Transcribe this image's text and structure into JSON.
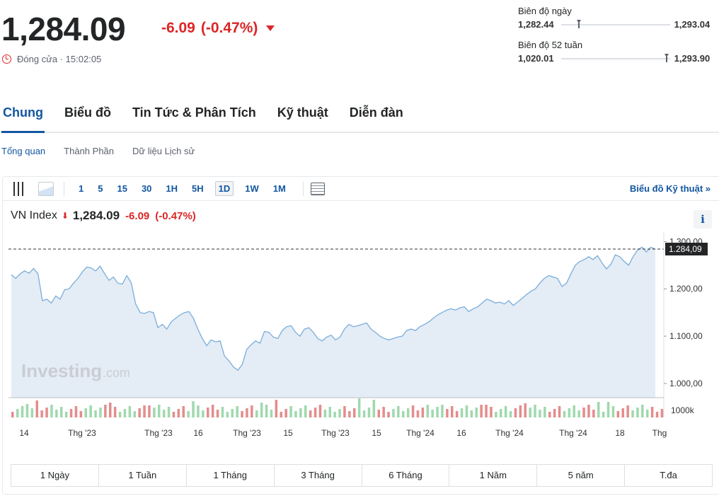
{
  "quote": {
    "price": "1,284.09",
    "change": "-6.09",
    "change_pct": "(-0.47%)",
    "status": "Đóng cửa · 15:02:05"
  },
  "day_range": {
    "label": "Biên độ ngày",
    "low": "1,282.44",
    "high": "1,293.04"
  },
  "week52_range": {
    "label": "Biên độ 52 tuần",
    "low": "1,020.01",
    "high": "1,293.90"
  },
  "tabs": [
    "Chung",
    "Biểu đồ",
    "Tin Tức & Phân Tích",
    "Kỹ thuật",
    "Diễn đàn"
  ],
  "subtabs": [
    "Tổng quan",
    "Thành Phần",
    "Dữ liệu Lịch sử"
  ],
  "toolbar": {
    "periods": [
      "1",
      "5",
      "15",
      "30",
      "1H",
      "5H",
      "1D",
      "1W",
      "1M"
    ],
    "active_period": "1D",
    "tech_link": "Biểu đồ Kỹ thuật »"
  },
  "instrument": {
    "name": "VN Index",
    "value": "1,284.09",
    "change": "-6.09",
    "change_pct": "(-0.47%)",
    "info": "i"
  },
  "colors": {
    "down": "#dc2626",
    "accent": "#1256a0",
    "line": "#7aaedb",
    "area": "#e4ecf5",
    "vol_up": "#9fd9ae",
    "vol_down": "#e58c8c"
  },
  "chart_data": {
    "type": "area",
    "y_ticks": [
      "1.300,00",
      "1.200,00",
      "1.100,00",
      "1.000,00"
    ],
    "ylim": [
      970,
      1320
    ],
    "current_label": "1.284,09",
    "current_value": 1284.09,
    "volume_label": "1000k",
    "x_ticks": [
      "14",
      "Thg '23",
      "Thg '23",
      "16",
      "Thg '23",
      "15",
      "Thg '23",
      "15",
      "Thg '24",
      "16",
      "Thg '24",
      "Thg '24",
      "18",
      "Thg"
    ],
    "watermark_main": "Investing",
    "watermark_suffix": ".com",
    "values": [
      1230,
      1222,
      1232,
      1238,
      1233,
      1243,
      1232,
      1175,
      1178,
      1170,
      1185,
      1178,
      1198,
      1200,
      1212,
      1222,
      1236,
      1246,
      1244,
      1238,
      1248,
      1232,
      1218,
      1225,
      1212,
      1210,
      1228,
      1213,
      1168,
      1150,
      1148,
      1152,
      1150,
      1118,
      1125,
      1115,
      1130,
      1138,
      1145,
      1150,
      1152,
      1138,
      1115,
      1095,
      1080,
      1092,
      1088,
      1090,
      1058,
      1048,
      1035,
      1028,
      1040,
      1072,
      1082,
      1090,
      1085,
      1110,
      1108,
      1098,
      1095,
      1112,
      1120,
      1122,
      1108,
      1100,
      1115,
      1118,
      1108,
      1095,
      1090,
      1098,
      1102,
      1092,
      1098,
      1115,
      1125,
      1120,
      1122,
      1125,
      1128,
      1115,
      1108,
      1100,
      1095,
      1092,
      1095,
      1098,
      1100,
      1112,
      1115,
      1112,
      1120,
      1125,
      1130,
      1138,
      1145,
      1150,
      1155,
      1158,
      1155,
      1160,
      1162,
      1152,
      1158,
      1162,
      1170,
      1178,
      1175,
      1170,
      1172,
      1168,
      1175,
      1165,
      1172,
      1180,
      1188,
      1195,
      1200,
      1212,
      1222,
      1228,
      1225,
      1222,
      1205,
      1212,
      1232,
      1250,
      1258,
      1262,
      1268,
      1262,
      1270,
      1255,
      1242,
      1252,
      1272,
      1268,
      1258,
      1250,
      1268,
      1282,
      1288,
      1278,
      1288,
      1284
    ],
    "volumes_hint": "mixed green/red volume bars"
  },
  "period_buttons": [
    "1 Ngày",
    "1 Tuần",
    "1 Tháng",
    "3 Tháng",
    "6 Tháng",
    "1 Năm",
    "5 năm",
    "T.đa"
  ]
}
